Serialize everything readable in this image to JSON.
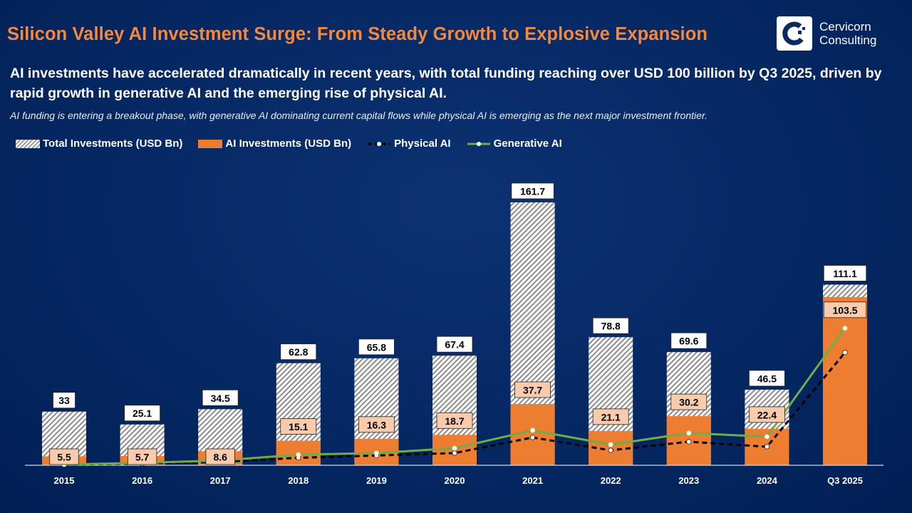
{
  "header": {
    "title": "Silicon Valley AI Investment Surge: From Steady Growth to Explosive Expansion",
    "subtitle": "AI investments have accelerated dramatically in recent years, with total funding reaching over USD 100 billion by Q3 2025, driven by rapid growth in generative AI and the emerging rise of physical AI.",
    "note": "AI funding is entering a breakout phase, with generative AI dominating current capital flows while physical AI is emerging as the next major investment frontier."
  },
  "logo": {
    "line1": "Cervicorn",
    "line2": "Consulting"
  },
  "colors": {
    "title": "#f4883c",
    "ai_bar": "#ed7d31",
    "ai_label_bg": "#f8cbad",
    "generative": "#70ad47",
    "physical": "#000000",
    "background": "#062a66"
  },
  "chart_data": {
    "type": "bar",
    "categories": [
      "2015",
      "2016",
      "2017",
      "2018",
      "2019",
      "2020",
      "2021",
      "2022",
      "2023",
      "2024",
      "Q3 2025"
    ],
    "series": [
      {
        "name": "Total Investments (USD Bn)",
        "kind": "bar-hatched",
        "values": [
          33,
          25.1,
          34.5,
          62.8,
          65.8,
          67.4,
          161.7,
          78.8,
          69.6,
          46.5,
          111.1
        ]
      },
      {
        "name": "AI Investments (USD Bn)",
        "kind": "bar",
        "values": [
          5.5,
          5.7,
          8.6,
          15.1,
          16.3,
          18.7,
          37.7,
          21.1,
          30.2,
          22.4,
          103.5
        ]
      },
      {
        "name": "Physical AI",
        "kind": "line-dashed",
        "values": [
          0.5,
          1,
          2,
          4.6,
          6,
          7.5,
          17.1,
          9.2,
          14.5,
          11.4,
          69.4
        ]
      },
      {
        "name": "Generative AI",
        "kind": "line",
        "values": [
          0.5,
          1.5,
          2.9,
          6.5,
          7.5,
          10.5,
          21.5,
          12.7,
          19.8,
          17.6,
          84.3
        ]
      }
    ],
    "ylim": [
      0,
      161.7
    ],
    "grid": false,
    "legend": "top-left",
    "xlabel": "",
    "ylabel": ""
  }
}
